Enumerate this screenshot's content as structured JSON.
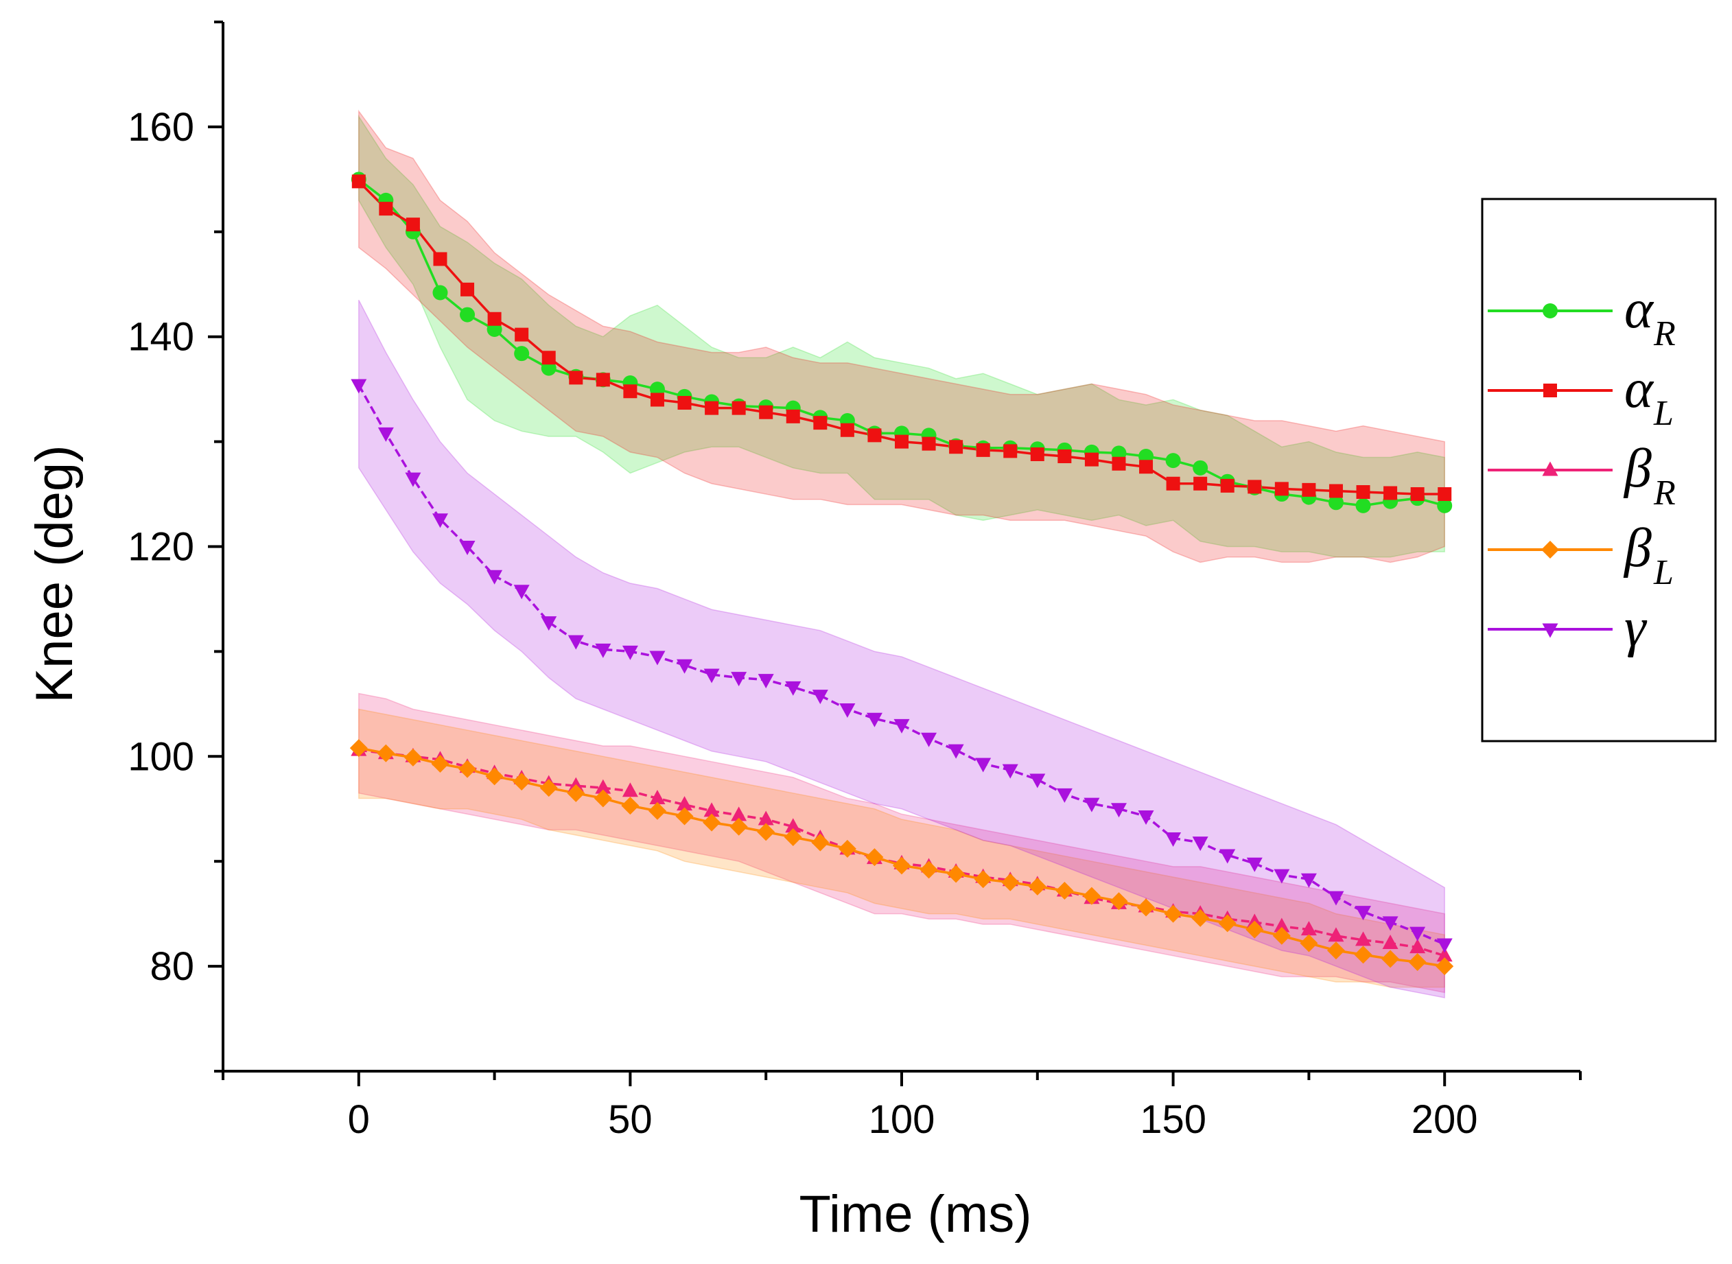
{
  "chart_data": {
    "type": "line",
    "title": "",
    "xlabel": "Time (ms)",
    "ylabel": "Knee (deg)",
    "xlim": [
      -25,
      225
    ],
    "ylim": [
      70,
      170
    ],
    "xticks": [
      0,
      50,
      100,
      150,
      200
    ],
    "yticks": [
      80,
      100,
      120,
      140,
      160
    ],
    "grid": false,
    "legend": "right",
    "x": [
      0,
      5,
      10,
      15,
      20,
      25,
      30,
      35,
      40,
      45,
      50,
      55,
      60,
      65,
      70,
      75,
      80,
      85,
      90,
      95,
      100,
      105,
      110,
      115,
      120,
      125,
      130,
      135,
      140,
      145,
      150,
      155,
      160,
      165,
      170,
      175,
      180,
      185,
      190,
      195,
      200
    ],
    "series": [
      {
        "name": "α",
        "sub": "R",
        "color": "#22dd22",
        "marker": "circle",
        "dash": "solid",
        "values": [
          155,
          153,
          150,
          144.2,
          142.1,
          140.7,
          138.4,
          137,
          136.2,
          135.9,
          135.6,
          135,
          134.3,
          133.8,
          133.4,
          133.3,
          133.2,
          132.3,
          132,
          130.8,
          130.8,
          130.6,
          129.6,
          129.4,
          129.4,
          129.3,
          129.2,
          129,
          128.9,
          128.6,
          128.2,
          127.5,
          126.2,
          125.6,
          125,
          124.7,
          124.2,
          123.9,
          124.3,
          124.6,
          123.9
        ],
        "band": [
          [
            153,
            161
          ],
          [
            148.5,
            157
          ],
          [
            145,
            154.5
          ],
          [
            139,
            150.5
          ],
          [
            134,
            149
          ],
          [
            132,
            147
          ],
          [
            131,
            145.5
          ],
          [
            130.5,
            143
          ],
          [
            130.5,
            141
          ],
          [
            129,
            140
          ],
          [
            127,
            142
          ],
          [
            128,
            143
          ],
          [
            129,
            141
          ],
          [
            129.5,
            139
          ],
          [
            129.5,
            138
          ],
          [
            128.5,
            138
          ],
          [
            127.5,
            139
          ],
          [
            127,
            138
          ],
          [
            127,
            139.5
          ],
          [
            124.5,
            138
          ],
          [
            124.5,
            137.5
          ],
          [
            124.5,
            137
          ],
          [
            123,
            136
          ],
          [
            122.5,
            136.5
          ],
          [
            123,
            135.5
          ],
          [
            123.5,
            134.5
          ],
          [
            123,
            135
          ],
          [
            122.5,
            135.5
          ],
          [
            123,
            134
          ],
          [
            122,
            133.5
          ],
          [
            122.5,
            134
          ],
          [
            120.5,
            133
          ],
          [
            120,
            132.5
          ],
          [
            120,
            131
          ],
          [
            119.5,
            129.5
          ],
          [
            119.5,
            130
          ],
          [
            119,
            129
          ],
          [
            119,
            128.5
          ],
          [
            119,
            128.5
          ],
          [
            119.5,
            129
          ],
          [
            119.5,
            128.5
          ]
        ]
      },
      {
        "name": "α",
        "sub": "L",
        "color": "#ee1111",
        "marker": "square",
        "dash": "solid",
        "values": [
          154.8,
          152.2,
          150.7,
          147.4,
          144.5,
          141.7,
          140.2,
          138,
          136.1,
          135.9,
          134.8,
          134,
          133.7,
          133.2,
          133.2,
          132.8,
          132.4,
          131.8,
          131.1,
          130.6,
          130,
          129.8,
          129.5,
          129.2,
          129.1,
          128.8,
          128.6,
          128.3,
          127.9,
          127.6,
          126,
          126,
          125.8,
          125.7,
          125.5,
          125.4,
          125.3,
          125.2,
          125.1,
          125,
          125
        ],
        "band": [
          [
            148.5,
            161.5
          ],
          [
            146.5,
            158
          ],
          [
            144,
            157
          ],
          [
            141.5,
            153
          ],
          [
            139,
            151
          ],
          [
            137,
            148
          ],
          [
            135,
            146
          ],
          [
            133,
            144
          ],
          [
            131,
            142.5
          ],
          [
            130.5,
            141
          ],
          [
            129,
            140.5
          ],
          [
            128.5,
            139.5
          ],
          [
            127,
            139
          ],
          [
            126,
            138.5
          ],
          [
            125.5,
            138.5
          ],
          [
            125,
            139
          ],
          [
            124.5,
            138
          ],
          [
            124.5,
            137.5
          ],
          [
            124,
            137.5
          ],
          [
            124,
            137
          ],
          [
            124,
            136.5
          ],
          [
            123.5,
            136
          ],
          [
            123,
            135.5
          ],
          [
            123,
            135
          ],
          [
            122.5,
            134.5
          ],
          [
            122.5,
            134.5
          ],
          [
            122.5,
            135
          ],
          [
            122,
            135.5
          ],
          [
            121.5,
            135
          ],
          [
            121,
            134.5
          ],
          [
            119.5,
            133.5
          ],
          [
            118.5,
            133
          ],
          [
            119,
            132.5
          ],
          [
            119,
            132
          ],
          [
            118.5,
            132
          ],
          [
            118.5,
            131.5
          ],
          [
            119,
            131
          ],
          [
            119,
            131.5
          ],
          [
            118.5,
            131
          ],
          [
            119,
            130.5
          ],
          [
            120,
            130
          ]
        ]
      },
      {
        "name": "β",
        "sub": "R",
        "color": "#ee2277",
        "marker": "triangle-up",
        "dash": "dashed",
        "values": [
          100.6,
          100.3,
          100,
          99.7,
          99,
          98.4,
          97.9,
          97.4,
          97.2,
          97,
          96.7,
          96,
          95.4,
          94.8,
          94.4,
          94,
          93.3,
          92.2,
          91.2,
          90.3,
          89.8,
          89.5,
          89,
          88.5,
          88.2,
          87.8,
          87.2,
          86.5,
          86,
          85.7,
          85.2,
          85,
          84.5,
          84.2,
          83.8,
          83.5,
          82.9,
          82.5,
          82.2,
          81.8,
          81
        ],
        "band": [
          [
            96.5,
            106
          ],
          [
            96,
            105.5
          ],
          [
            95.5,
            104.5
          ],
          [
            95,
            104
          ],
          [
            94.5,
            103.5
          ],
          [
            94,
            103
          ],
          [
            93.5,
            102.5
          ],
          [
            93,
            102
          ],
          [
            93,
            101.5
          ],
          [
            92.5,
            101
          ],
          [
            92,
            101
          ],
          [
            91.5,
            100.5
          ],
          [
            91,
            100
          ],
          [
            90.5,
            99.5
          ],
          [
            90,
            99
          ],
          [
            89,
            98.5
          ],
          [
            88,
            98
          ],
          [
            87,
            97
          ],
          [
            86,
            96
          ],
          [
            85,
            95.5
          ],
          [
            85,
            94.5
          ],
          [
            84.5,
            94
          ],
          [
            84.5,
            93.5
          ],
          [
            84,
            93
          ],
          [
            84,
            92.5
          ],
          [
            83.5,
            92
          ],
          [
            83,
            91.5
          ],
          [
            82.5,
            91
          ],
          [
            82,
            90.5
          ],
          [
            81.5,
            90
          ],
          [
            81,
            89.5
          ],
          [
            80.5,
            89.5
          ],
          [
            80,
            89
          ],
          [
            79.5,
            88.5
          ],
          [
            79,
            88
          ],
          [
            79,
            87.5
          ],
          [
            79,
            87
          ],
          [
            78.5,
            86.5
          ],
          [
            78.5,
            86
          ],
          [
            78,
            85.5
          ],
          [
            77.5,
            85
          ]
        ]
      },
      {
        "name": "β",
        "sub": "L",
        "color": "#ff8800",
        "marker": "diamond",
        "dash": "solid",
        "values": [
          100.8,
          100.3,
          99.9,
          99.3,
          98.8,
          98.1,
          97.6,
          97,
          96.5,
          96,
          95.3,
          94.8,
          94.3,
          93.7,
          93.3,
          92.8,
          92.3,
          91.8,
          91.2,
          90.4,
          89.6,
          89.2,
          88.8,
          88.3,
          88,
          87.6,
          87.2,
          86.7,
          86.2,
          85.6,
          85,
          84.6,
          84.1,
          83.5,
          82.9,
          82.2,
          81.5,
          81.1,
          80.7,
          80.4,
          80
        ],
        "band": [
          [
            96,
            104.5
          ],
          [
            96,
            104
          ],
          [
            95.5,
            103.5
          ],
          [
            95,
            103
          ],
          [
            95,
            102.5
          ],
          [
            94.5,
            102
          ],
          [
            94,
            101.5
          ],
          [
            93,
            101
          ],
          [
            92.5,
            100.5
          ],
          [
            92,
            100
          ],
          [
            91.5,
            99.5
          ],
          [
            91,
            99
          ],
          [
            90,
            98.5
          ],
          [
            89.5,
            98
          ],
          [
            89,
            97.5
          ],
          [
            88.5,
            97
          ],
          [
            88,
            96.5
          ],
          [
            87.5,
            96
          ],
          [
            87,
            95.5
          ],
          [
            86,
            95
          ],
          [
            85.5,
            94
          ],
          [
            85,
            93.5
          ],
          [
            85,
            93
          ],
          [
            84.5,
            92
          ],
          [
            84.5,
            91.5
          ],
          [
            84,
            91
          ],
          [
            83.5,
            90.5
          ],
          [
            83,
            90
          ],
          [
            82.5,
            89.5
          ],
          [
            82,
            89
          ],
          [
            81.5,
            88.5
          ],
          [
            81,
            88
          ],
          [
            80.5,
            87.5
          ],
          [
            80,
            87
          ],
          [
            79.5,
            86.5
          ],
          [
            79,
            86
          ],
          [
            78.5,
            85
          ],
          [
            78.5,
            84.5
          ],
          [
            78,
            84
          ],
          [
            78,
            83.5
          ],
          [
            78,
            83
          ]
        ]
      },
      {
        "name": "γ",
        "sub": "",
        "color": "#aa11dd",
        "marker": "triangle-down",
        "dash": "dashed",
        "values": [
          135.4,
          130.8,
          126.5,
          122.6,
          120,
          117.2,
          115.8,
          112.8,
          111,
          110.2,
          110,
          109.5,
          108.7,
          107.8,
          107.5,
          107.3,
          106.6,
          105.8,
          104.5,
          103.6,
          103,
          101.7,
          100.6,
          99.3,
          98.7,
          97.8,
          96.4,
          95.5,
          95,
          94.3,
          92.2,
          91.8,
          90.6,
          89.8,
          88.7,
          88.3,
          86.6,
          85.2,
          84.2,
          83.2,
          82.1
        ],
        "band": [
          [
            127.5,
            143.5
          ],
          [
            123.5,
            138.5
          ],
          [
            119.5,
            134
          ],
          [
            116.5,
            130
          ],
          [
            114.5,
            127
          ],
          [
            112,
            125
          ],
          [
            110,
            123
          ],
          [
            107.5,
            121
          ],
          [
            105.5,
            119
          ],
          [
            104.5,
            117.5
          ],
          [
            103.5,
            116.5
          ],
          [
            102.5,
            116
          ],
          [
            101.5,
            115
          ],
          [
            100.5,
            114
          ],
          [
            100,
            113.5
          ],
          [
            99.5,
            113
          ],
          [
            98.5,
            112.5
          ],
          [
            97.5,
            112
          ],
          [
            96.5,
            111
          ],
          [
            95.5,
            110
          ],
          [
            95,
            109.5
          ],
          [
            94,
            108.5
          ],
          [
            93,
            107.5
          ],
          [
            92,
            106.5
          ],
          [
            91.5,
            105.5
          ],
          [
            90.5,
            104.5
          ],
          [
            89.5,
            103.5
          ],
          [
            88.5,
            102.5
          ],
          [
            87.5,
            101.5
          ],
          [
            86.5,
            100.5
          ],
          [
            85.5,
            99.5
          ],
          [
            84.5,
            98.5
          ],
          [
            83.5,
            97.5
          ],
          [
            82.5,
            96.5
          ],
          [
            81.5,
            95.5
          ],
          [
            81,
            94.5
          ],
          [
            80,
            93.5
          ],
          [
            79,
            92
          ],
          [
            78,
            90.5
          ],
          [
            77.5,
            89
          ],
          [
            77,
            87.5
          ]
        ]
      }
    ]
  }
}
